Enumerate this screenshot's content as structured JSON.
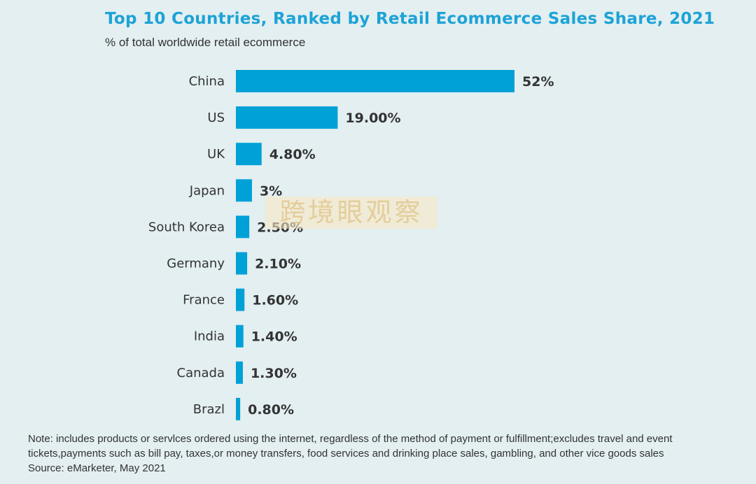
{
  "title": "Top 10 Countries, Ranked by Retail Ecommerce Sales Share, 2021",
  "subtitle": "% of total worldwide retail ecommerce",
  "watermark": "跨境眼观察",
  "notes": {
    "line1": "Note: includes products or servlces ordered using the internet, regardless of the method of payment or fulfillment;excludes travel and event",
    "line2": "tickets,payments such as bill pay, taxes,or money transfers, food services and drinking place sales, gambling, and other vice goods sales",
    "source": "Source: eMarketer, May 2021"
  },
  "colors": {
    "bar": "#00a1d7",
    "title": "#1da3d6",
    "background": "#e3eff1",
    "text": "#333333"
  },
  "chart_data": {
    "type": "bar",
    "orientation": "horizontal",
    "title": "Top 10 Countries, Ranked by Retail Ecommerce Sales Share, 2021",
    "subtitle": "% of total worldwide retail ecommerce",
    "categories": [
      "China",
      "US",
      "UK",
      "Japan",
      "South Korea",
      "Germany",
      "France",
      "India",
      "Canada",
      "Brazl"
    ],
    "values": [
      52,
      19.0,
      4.8,
      3,
      2.5,
      2.1,
      1.6,
      1.4,
      1.3,
      0.8
    ],
    "value_labels": [
      "52%",
      "19.00%",
      "4.80%",
      "3%",
      "2.50%",
      "2.10%",
      "1.60%",
      "1.40%",
      "1.30%",
      "0.80%"
    ],
    "xlim": [
      0,
      52
    ],
    "grid": false,
    "legend": false
  }
}
